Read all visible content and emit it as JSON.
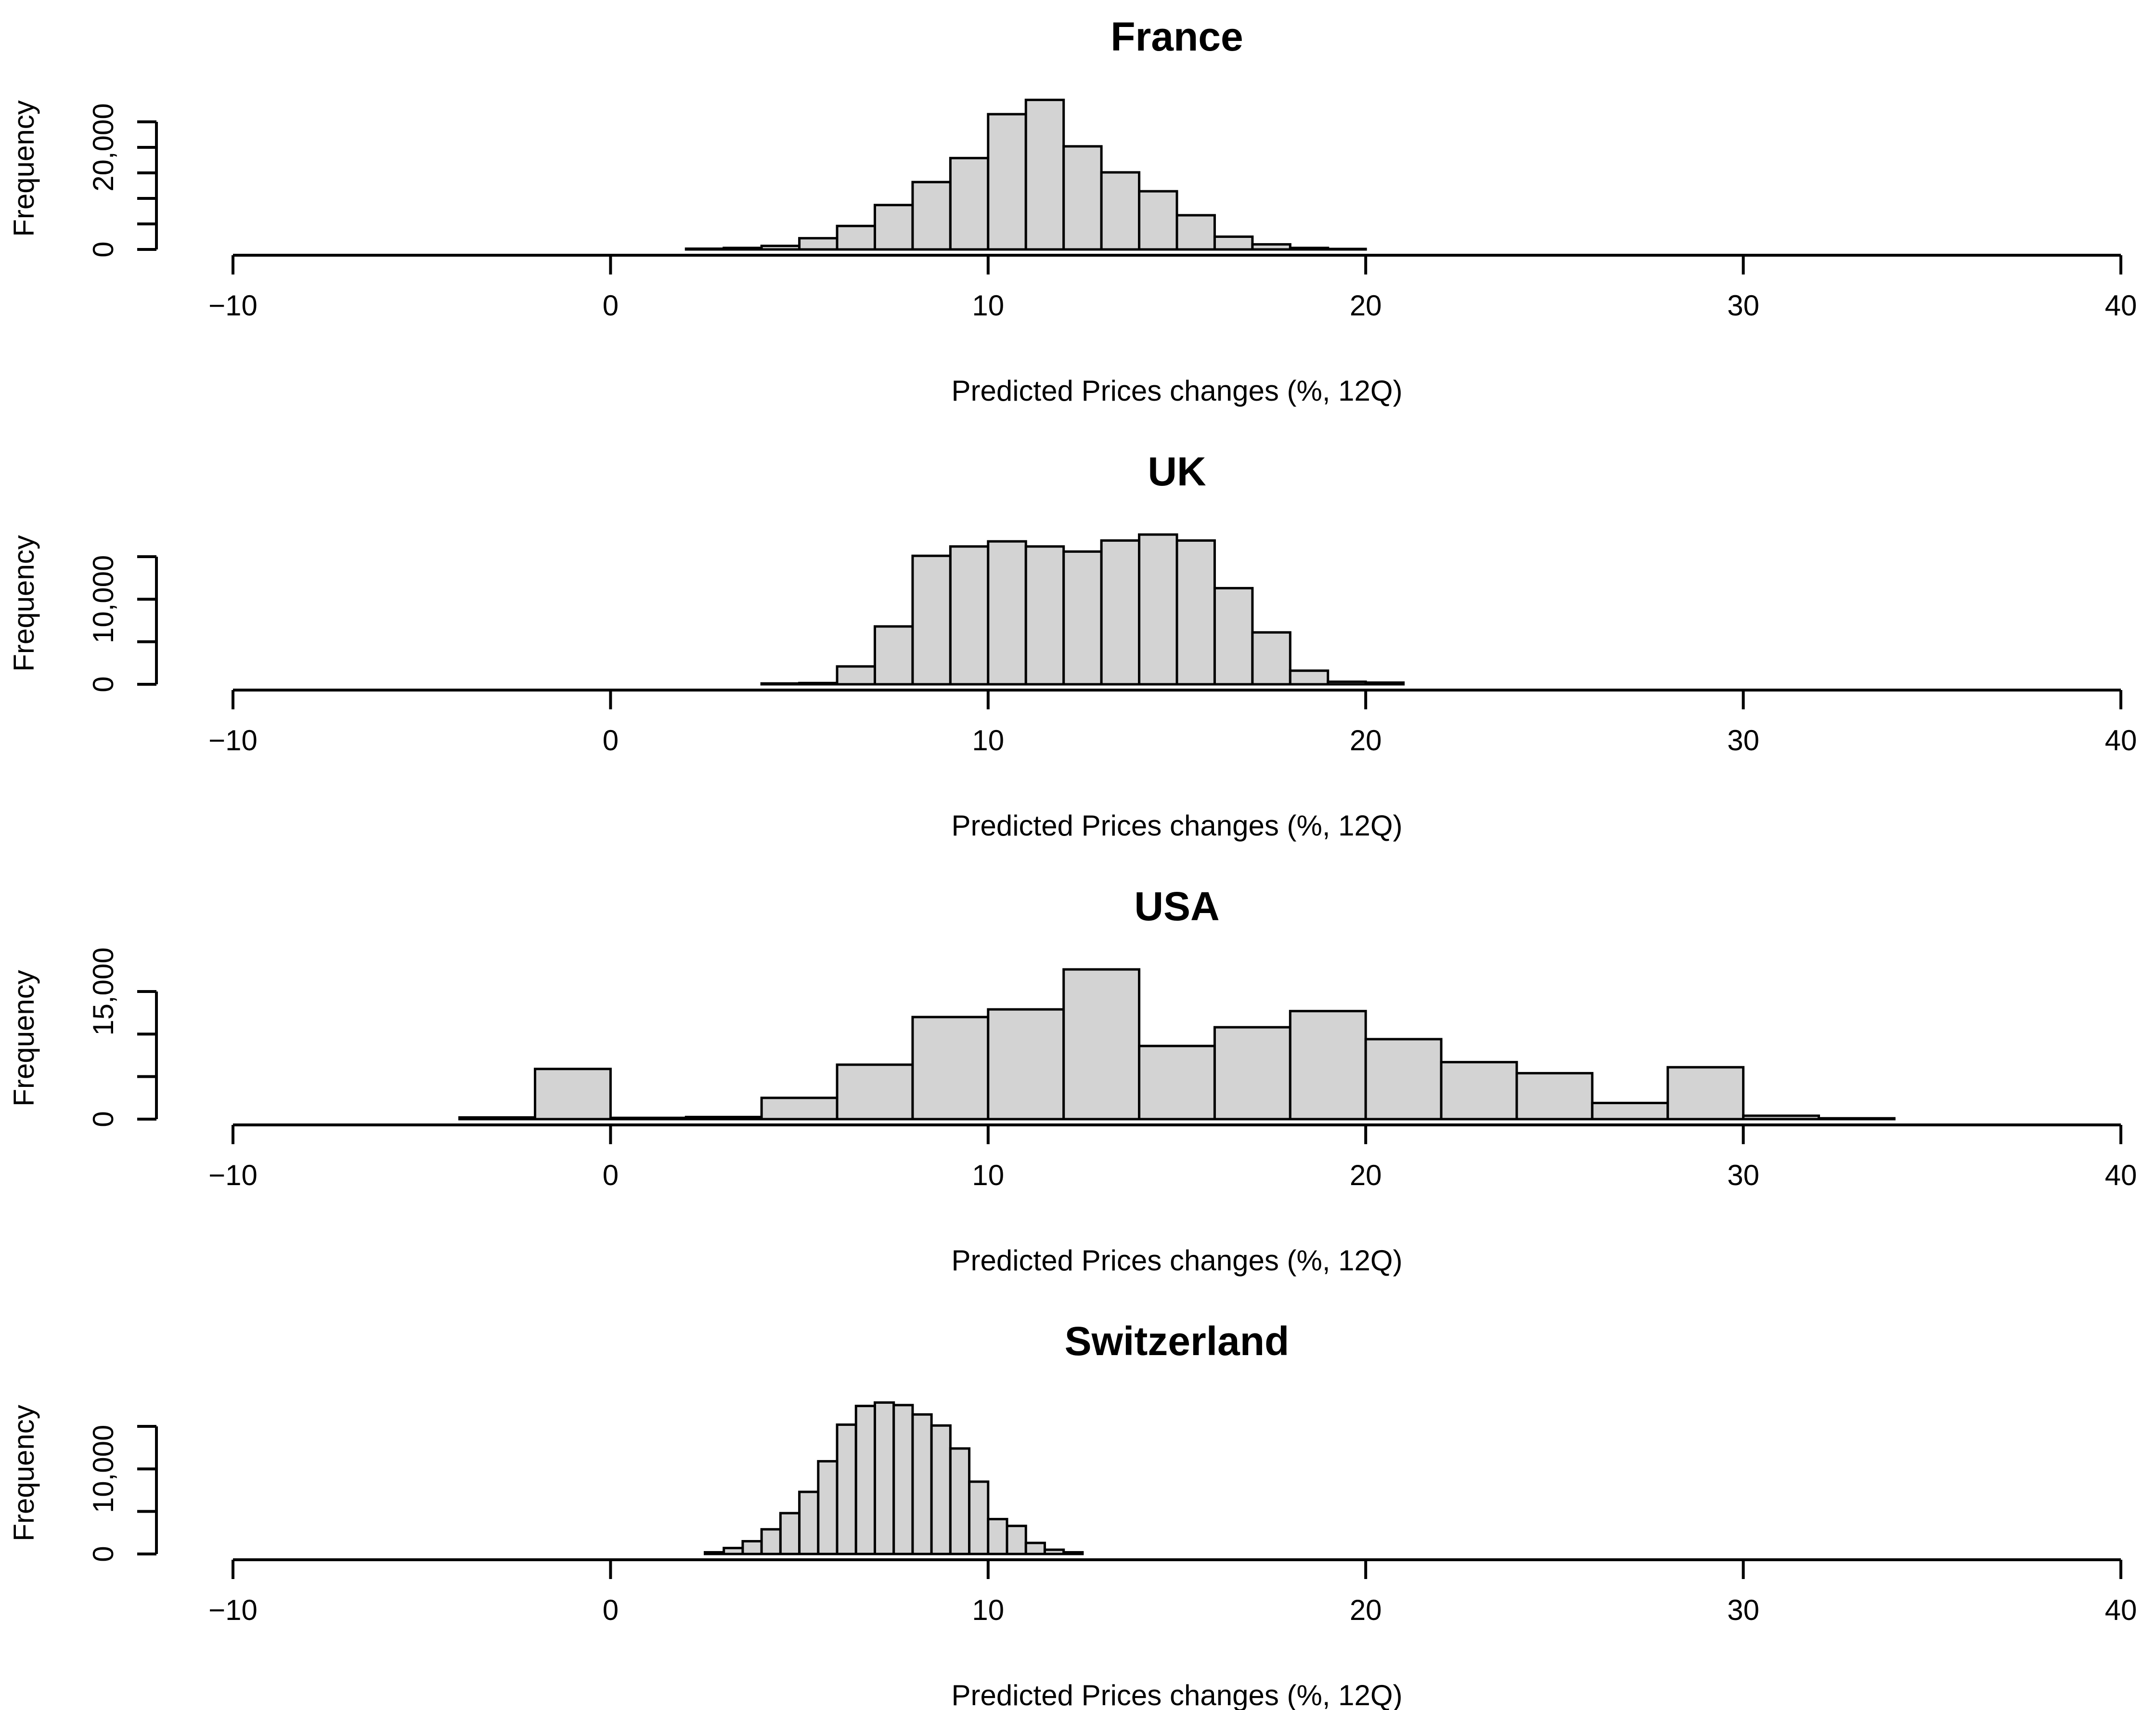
{
  "chart_data": [
    {
      "type": "bar",
      "title": "France",
      "xlabel": "Predicted Prices changes (%, 12Q)",
      "ylabel": "Frequency",
      "xlim": [
        -10,
        40
      ],
      "ylim": [
        0,
        25000
      ],
      "xticks": [
        -10,
        0,
        10,
        20,
        30,
        40
      ],
      "xtick_labels": [
        "−10",
        "0",
        "10",
        "20",
        "30",
        "40"
      ],
      "yticks": [
        0,
        5000,
        10000,
        15000,
        20000,
        25000
      ],
      "ytick_labels": [
        {
          "v": 0,
          "t": "0"
        },
        {
          "v": 20000,
          "t": "20,000"
        }
      ],
      "bin_edges": [
        2,
        3,
        4,
        5,
        6,
        7,
        8,
        9,
        10,
        11,
        12,
        13,
        14,
        15,
        16,
        17,
        18,
        19,
        20
      ],
      "values": [
        150,
        300,
        700,
        2200,
        4600,
        8700,
        13200,
        17900,
        26500,
        29300,
        20200,
        15100,
        11400,
        6700,
        2500,
        1000,
        300,
        100
      ]
    },
    {
      "type": "bar",
      "title": "UK",
      "xlabel": "Predicted Prices changes (%, 12Q)",
      "ylabel": "Frequency",
      "xlim": [
        -10,
        40
      ],
      "ylim": [
        0,
        15000
      ],
      "xticks": [
        -10,
        0,
        10,
        20,
        30,
        40
      ],
      "xtick_labels": [
        "−10",
        "0",
        "10",
        "20",
        "30",
        "40"
      ],
      "yticks": [
        0,
        5000,
        10000,
        15000
      ],
      "ytick_labels": [
        {
          "v": 0,
          "t": "0"
        },
        {
          "v": 10000,
          "t": "10,000"
        }
      ],
      "bin_edges": [
        4,
        5,
        6,
        7,
        8,
        9,
        10,
        11,
        12,
        13,
        14,
        15,
        16,
        17,
        18,
        19,
        20,
        21
      ],
      "values": [
        100,
        150,
        2100,
        6800,
        15100,
        16200,
        16800,
        16200,
        15600,
        16900,
        17600,
        16900,
        11300,
        6100,
        1600,
        300,
        200
      ]
    },
    {
      "type": "bar",
      "title": "USA",
      "xlabel": "Predicted Prices changes (%, 12Q)",
      "ylabel": "Frequency",
      "xlim": [
        -10,
        40
      ],
      "ylim": [
        0,
        15000
      ],
      "xticks": [
        -10,
        0,
        10,
        20,
        30,
        40
      ],
      "xtick_labels": [
        "−10",
        "0",
        "10",
        "20",
        "30",
        "40"
      ],
      "yticks": [
        0,
        5000,
        10000,
        15000
      ],
      "ytick_labels": [
        {
          "v": 0,
          "t": "0"
        },
        {
          "v": 15000,
          "t": "15,000"
        }
      ],
      "bin_edges": [
        -4,
        -2,
        0,
        2,
        4,
        6,
        8,
        10,
        12,
        14,
        16,
        18,
        20,
        22,
        24,
        26,
        28,
        30,
        32,
        34
      ],
      "values": [
        200,
        5900,
        150,
        250,
        2500,
        6400,
        12000,
        12900,
        17600,
        8600,
        10800,
        12700,
        9400,
        6700,
        5400,
        1900,
        6100,
        400,
        100
      ]
    },
    {
      "type": "bar",
      "title": "Switzerland",
      "xlabel": "Predicted Prices changes (%, 12Q)",
      "ylabel": "Frequency",
      "xlim": [
        -10,
        40
      ],
      "ylim": [
        0,
        15000
      ],
      "xticks": [
        -10,
        0,
        10,
        20,
        30,
        40
      ],
      "xtick_labels": [
        "−10",
        "0",
        "10",
        "20",
        "30",
        "40"
      ],
      "yticks": [
        0,
        5000,
        10000,
        15000
      ],
      "ytick_labels": [
        {
          "v": 0,
          "t": "0"
        },
        {
          "v": 10000,
          "t": "10,000"
        }
      ],
      "bin_edges": [
        2.5,
        3,
        3.5,
        4,
        4.5,
        5,
        5.5,
        6,
        6.5,
        7,
        7.5,
        8,
        8.5,
        9,
        9.5,
        10,
        10.5,
        11,
        11.5,
        12,
        12.5
      ],
      "values": [
        200,
        700,
        1500,
        2900,
        4800,
        7300,
        10900,
        15200,
        17400,
        17800,
        17500,
        16400,
        15100,
        12400,
        8500,
        4100,
        3300,
        1300,
        500,
        200
      ]
    }
  ]
}
